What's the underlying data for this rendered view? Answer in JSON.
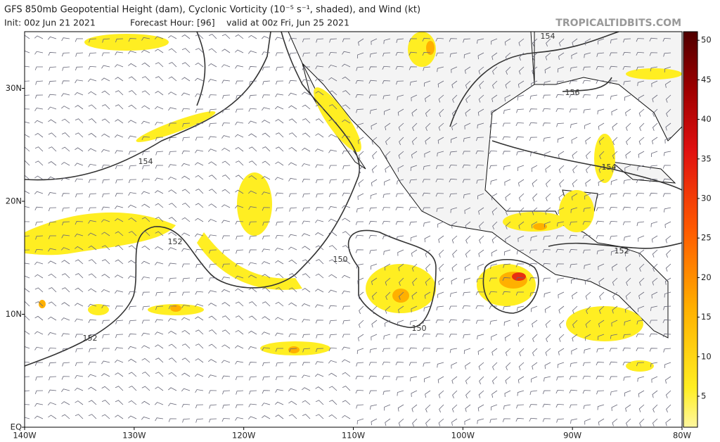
{
  "header": {
    "title": "GFS 850mb Geopotential Height (dam), Cyclonic Vorticity (10⁻⁵ s⁻¹, shaded), and Wind (kt)",
    "init": "Init: 00z Jun 21 2021",
    "forecast_hour": "Forecast Hour: [96]",
    "valid": "valid at 00z Fri, Jun 25 2021",
    "site": "TROPICALTIDBITS.COM"
  },
  "map": {
    "lon_labels": [
      "140W",
      "130W",
      "120W",
      "110W",
      "100W",
      "90W",
      "80W"
    ],
    "lat_labels": [
      "EQ",
      "10N",
      "20N",
      "30N"
    ],
    "contour_labels": [
      "154",
      "152",
      "150",
      "150",
      "152",
      "154",
      "156",
      "154",
      "152"
    ]
  },
  "colorbar": {
    "labels": [
      "5",
      "10",
      "15",
      "20",
      "25",
      "30",
      "35",
      "40",
      "45",
      "50"
    ]
  }
}
